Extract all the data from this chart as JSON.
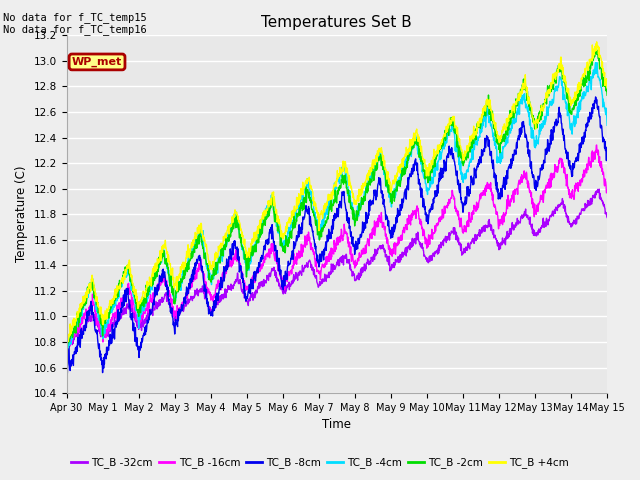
{
  "title": "Temperatures Set B",
  "xlabel": "Time",
  "ylabel": "Temperature (C)",
  "ylim": [
    10.4,
    13.2
  ],
  "xlim": [
    0,
    15
  ],
  "xtick_labels": [
    "Apr 30",
    "May 1",
    "May 2",
    "May 3",
    "May 4",
    "May 5",
    "May 6",
    "May 7",
    "May 8",
    "May 9",
    "May 10",
    "May 11",
    "May 12",
    "May 13",
    "May 14",
    "May 15"
  ],
  "series_labels": [
    "TC_B -32cm",
    "TC_B -16cm",
    "TC_B -8cm",
    "TC_B -4cm",
    "TC_B -2cm",
    "TC_B +4cm"
  ],
  "series_colors": [
    "#AA00FF",
    "#FF00FF",
    "#0000EE",
    "#00DDFF",
    "#00DD00",
    "#FFFF00"
  ],
  "annotation_text": "No data for f_TC_temp15\nNo data for f_TC_temp16",
  "legend_wp_met": "WP_met",
  "legend_wp_met_color": "#AA0000",
  "legend_wp_met_bg": "#FFFF88",
  "background_color": "#E8E8E8",
  "grid_color": "#FFFFFF",
  "linewidth": 1.0,
  "fig_width": 6.4,
  "fig_height": 4.8,
  "dpi": 100
}
